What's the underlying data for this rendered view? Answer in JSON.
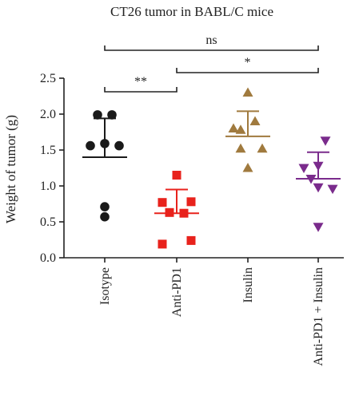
{
  "chart_data": {
    "type": "scatter",
    "title": "CT26 tumor in BABL/C mice",
    "xlabel": "",
    "ylabel": "Weight of tumor (g)",
    "ylim": [
      0,
      2.5
    ],
    "yticks": [
      "0.0",
      "0.5",
      "1.0",
      "1.5",
      "2.0",
      "2.5"
    ],
    "categories": [
      "Isotype",
      "Anti-PD1",
      "Insulin",
      "Anti-PD1 + Insulin"
    ],
    "grid": false,
    "legend": "none",
    "groups": [
      {
        "category": "Isotype",
        "marker": "circle",
        "color": "#1a1a1a",
        "points": [
          {
            "offset": -1,
            "value": 1.99
          },
          {
            "offset": 1,
            "value": 1.99
          },
          {
            "offset": -2,
            "value": 1.56
          },
          {
            "offset": 0,
            "value": 1.59
          },
          {
            "offset": 2,
            "value": 1.56
          },
          {
            "offset": 0,
            "value": 0.71
          },
          {
            "offset": 0,
            "value": 0.57
          }
        ],
        "mean": 1.4,
        "sd_upper": 1.94,
        "sd_lower": 1.4
      },
      {
        "category": "Anti-PD1",
        "marker": "square",
        "color": "#e8221c",
        "points": [
          {
            "offset": 0,
            "value": 1.15
          },
          {
            "offset": -2,
            "value": 0.77
          },
          {
            "offset": 2,
            "value": 0.78
          },
          {
            "offset": -1,
            "value": 0.63
          },
          {
            "offset": 1,
            "value": 0.62
          },
          {
            "offset": -2,
            "value": 0.19
          },
          {
            "offset": 2,
            "value": 0.24
          }
        ],
        "mean": 0.62,
        "sd_upper": 0.95,
        "sd_lower": 0.62
      },
      {
        "category": "Insulin",
        "marker": "triangle-up",
        "color": "#a07a3e",
        "points": [
          {
            "offset": 0,
            "value": 2.3
          },
          {
            "offset": -2,
            "value": 1.8
          },
          {
            "offset": -1,
            "value": 1.78
          },
          {
            "offset": 1,
            "value": 1.9
          },
          {
            "offset": -1,
            "value": 1.52
          },
          {
            "offset": 2,
            "value": 1.52
          },
          {
            "offset": 0,
            "value": 1.25
          }
        ],
        "mean": 1.69,
        "sd_upper": 2.04,
        "sd_lower": 1.69
      },
      {
        "category": "Anti-PD1 + Insulin",
        "marker": "triangle-down",
        "color": "#7a2b8c",
        "points": [
          {
            "offset": 1,
            "value": 1.63
          },
          {
            "offset": -2,
            "value": 1.25
          },
          {
            "offset": 0,
            "value": 1.28
          },
          {
            "offset": -1,
            "value": 1.1
          },
          {
            "offset": 0,
            "value": 0.98
          },
          {
            "offset": 2,
            "value": 0.96
          },
          {
            "offset": 0,
            "value": 0.43
          }
        ],
        "mean": 1.1,
        "sd_upper": 1.47,
        "sd_lower": 1.1
      }
    ],
    "annotations": [
      {
        "label": "ns",
        "from": "Isotype",
        "to": "Anti-PD1 + Insulin"
      },
      {
        "label": "*",
        "from": "Anti-PD1",
        "to": "Anti-PD1 + Insulin"
      },
      {
        "label": "**",
        "from": "Isotype",
        "to": "Anti-PD1"
      }
    ]
  }
}
